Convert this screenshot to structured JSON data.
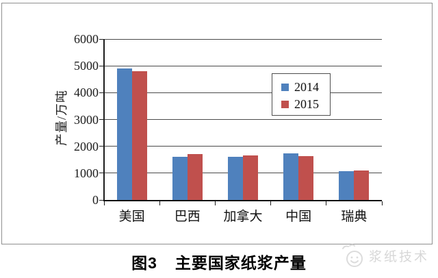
{
  "chart_data": {
    "type": "bar",
    "categories": [
      "美国",
      "巴西",
      "加拿大",
      "中国",
      "瑞典"
    ],
    "series": [
      {
        "name": "2014",
        "color": "#4F81BD",
        "values": [
          4890,
          1620,
          1620,
          1730,
          1060
        ]
      },
      {
        "name": "2015",
        "color": "#C0504D",
        "values": [
          4810,
          1700,
          1650,
          1630,
          1100
        ]
      }
    ],
    "title": "",
    "xlabel": "",
    "ylabel": "产量/万吨",
    "ylim": [
      0,
      6000
    ],
    "ytick_step": 1000,
    "yticks": [
      "0",
      "1000",
      "2000",
      "3000",
      "4000",
      "5000",
      "6000"
    ],
    "grid": true,
    "legend_position": "inside-upper-right"
  },
  "caption": {
    "figure_label": "图3",
    "title": "主要国家纸浆产量"
  },
  "watermark": {
    "text": "浆纸技术"
  },
  "colors": {
    "series_2014": "#4F81BD",
    "series_2015": "#C0504D",
    "gridline": "#4a4a4a",
    "frame_border": "#8f8f8f",
    "watermark": "#d7d7d7"
  }
}
